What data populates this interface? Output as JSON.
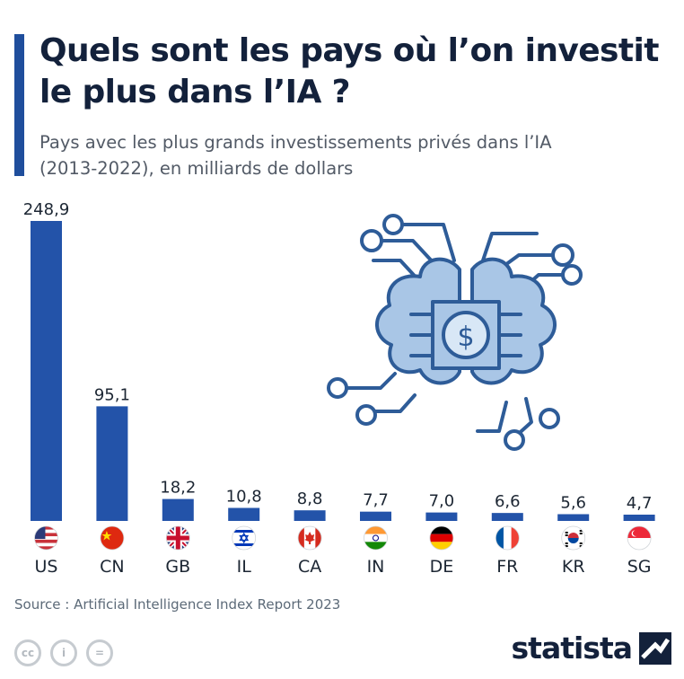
{
  "header": {
    "title": "Quels sont les pays où l’on investit le plus dans l’IA ?",
    "subtitle": "Pays avec les plus grands investissements privés dans l’IA (2013-2022), en milliards de dollars"
  },
  "colors": {
    "accent": "#1f4e9c",
    "bar": "#2353a9",
    "title": "#13213b",
    "illustration_fill": "#a9c6e6",
    "illustration_stroke": "#2e5c98"
  },
  "illustration": {
    "icon": "ai-cloud-dollar-circuit-icon",
    "symbol": "$"
  },
  "chart_data": {
    "type": "bar",
    "title": "Quels sont les pays où l’on investit le plus dans l’IA ?",
    "subtitle": "Pays avec les plus grands investissements privés dans l’IA (2013-2022), en milliards de dollars",
    "xlabel": "",
    "ylabel": "",
    "categories": [
      "US",
      "CN",
      "GB",
      "IL",
      "CA",
      "IN",
      "DE",
      "FR",
      "KR",
      "SG"
    ],
    "values": [
      248.9,
      95.1,
      18.2,
      10.8,
      8.8,
      7.7,
      7.0,
      6.6,
      5.6,
      4.7
    ],
    "value_labels": [
      "248,9",
      "95,1",
      "18,2",
      "10,8",
      "8,8",
      "7,7",
      "7,0",
      "6,6",
      "5,6",
      "4,7"
    ],
    "flags": [
      "us-flag-icon",
      "cn-flag-icon",
      "gb-flag-icon",
      "il-flag-icon",
      "ca-flag-icon",
      "in-flag-icon",
      "de-flag-icon",
      "fr-flag-icon",
      "kr-flag-icon",
      "sg-flag-icon"
    ],
    "ylim": [
      0,
      248.9
    ],
    "grid": false,
    "legend": "none"
  },
  "footer": {
    "source": "Source : Artificial Intelligence Index Report 2023",
    "license_icons": [
      "cc",
      "i",
      "="
    ],
    "brand": "statista"
  }
}
